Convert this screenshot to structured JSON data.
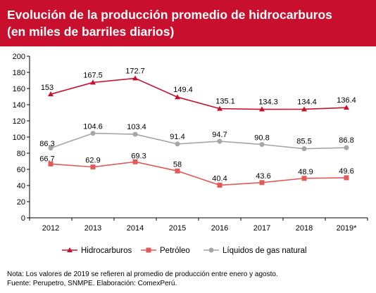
{
  "header": {
    "title_line1": "Evolución de la producción promedio de hidrocarburos",
    "title_line2": "(en miles de barriles diarios)",
    "background_color": "#c8102e"
  },
  "chart_data": {
    "type": "line",
    "title": "Evolución de la producción promedio de hidrocarburos (en miles de barriles diarios)",
    "categories": [
      "2012",
      "2013",
      "2014",
      "2015",
      "2016",
      "2017",
      "2018",
      "2019*"
    ],
    "ylim": [
      0,
      200
    ],
    "yticks": [
      0,
      20,
      40,
      60,
      80,
      100,
      120,
      140,
      160,
      180,
      200
    ],
    "grid": false,
    "legend_position": "bottom",
    "series": [
      {
        "name": "Hidrocarburos",
        "marker": "triangle",
        "color": "#c8102e",
        "values": [
          153,
          167.5,
          172.7,
          149.4,
          135.1,
          134.3,
          134.4,
          136.4
        ],
        "labels": [
          "153",
          "167.5",
          "172.7",
          "149.4",
          "135.1",
          "134.3",
          "134.4",
          "136.4"
        ]
      },
      {
        "name": "Petróleo",
        "marker": "square",
        "color": "#e05a57",
        "values": [
          66.7,
          62.9,
          69.3,
          58,
          40.4,
          43.6,
          48.9,
          49.6
        ],
        "labels": [
          "66.7",
          "62.9",
          "69.3",
          "58",
          "40.4",
          "43.6",
          "48.9",
          "49.6"
        ]
      },
      {
        "name": "Líquidos de gas natural",
        "marker": "circle",
        "color": "#a6a6a6",
        "values": [
          86.3,
          104.6,
          103.4,
          91.4,
          94.7,
          90.8,
          85.5,
          86.8
        ],
        "labels": [
          "86.3",
          "104.6",
          "103.4",
          "91.4",
          "94.7",
          "90.8",
          "85.5",
          "86.8"
        ]
      }
    ]
  },
  "notes": {
    "line1": "Nota: Los valores de 2019 se refieren al promedio de producción entre enero y agosto.",
    "line2": "Fuente: Perupetro, SNMPE. Elaboración: ComexPerú."
  }
}
